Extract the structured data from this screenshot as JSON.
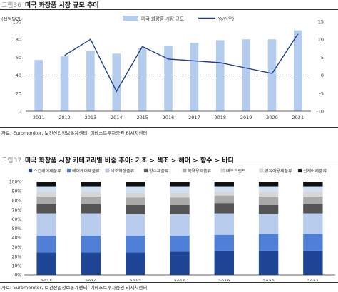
{
  "figures": [
    {
      "number": "그림36",
      "title": "미국 화장품 시장 규모 추이",
      "source": "자료: Euromonitor, 보건산업정보통계센터, 이베스트투자증권 리서치센터"
    },
    {
      "number": "그림37",
      "title": "미국 화장품 시장 카테고리별 비중 추이: 기초 > 색조 > 헤어 > 향수 > 바디",
      "source": "자료: Euromonitor, 보건산업정보통계센터, 이베스트투자증권 리서치센터"
    }
  ],
  "chart_data": [
    {
      "type": "bar",
      "unit_label": "(십억달러)",
      "categories": [
        "2011",
        "2012",
        "2013",
        "2014",
        "2015",
        "2016",
        "2017",
        "2018",
        "2019",
        "2020",
        "2021"
      ],
      "series": [
        {
          "name": "미국 화장품 시장 규모",
          "axis": "left",
          "kind": "bar",
          "color": "#b4cdee",
          "values": [
            57,
            61,
            67,
            64,
            70,
            73,
            76,
            79,
            80,
            80,
            90
          ]
        },
        {
          "name": "YoY(우)",
          "axis": "right",
          "kind": "line",
          "color": "#1f3f8f",
          "values": [
            null,
            5.5,
            10,
            -4.5,
            8,
            4.5,
            4,
            3.5,
            2,
            0.5,
            11.5
          ]
        }
      ],
      "ylim": [
        0,
        100
      ],
      "yticks": [
        "0",
        "20",
        "40",
        "60",
        "80",
        "100"
      ],
      "y2lim": [
        -10,
        15
      ],
      "y2ticks": [
        "-10",
        "-5",
        "0",
        "5",
        "10",
        "15"
      ],
      "legend_position": "top"
    },
    {
      "type": "bar",
      "stacked": true,
      "categories": [
        "2015",
        "2016",
        "2017",
        "2018",
        "2019",
        "2020",
        "2021"
      ],
      "series": [
        {
          "name": "스킨케어제품류",
          "color": "#1e4496",
          "values": [
            24,
            24,
            24,
            25,
            26,
            26,
            26
          ]
        },
        {
          "name": "헤어케어제품류",
          "color": "#4f7fd6",
          "values": [
            18,
            18,
            18,
            17,
            17,
            18,
            18
          ]
        },
        {
          "name": "색조화장품류",
          "color": "#b8cdee",
          "values": [
            24,
            24,
            23,
            23,
            23,
            21,
            22
          ]
        },
        {
          "name": "향수제품류",
          "color": "#555555",
          "values": [
            10,
            10,
            10,
            10,
            11,
            10,
            10
          ]
        },
        {
          "name": "목욕용제품류",
          "color": "#a9a9a9",
          "values": [
            8,
            8,
            8,
            8,
            8,
            9,
            8
          ]
        },
        {
          "name": "데오드런트",
          "color": "#d6d6d6",
          "values": [
            5,
            5,
            5,
            5,
            4,
            5,
            5
          ]
        },
        {
          "name": "영유아용제품류",
          "color": "#cfe0f3",
          "values": [
            6,
            6,
            7,
            7,
            6,
            6,
            6
          ]
        },
        {
          "name": "선케어제품류",
          "color": "#111111",
          "values": [
            5,
            5,
            5,
            5,
            5,
            5,
            5
          ]
        }
      ],
      "ylim": [
        0,
        100
      ],
      "yticks": [
        "0%",
        "10%",
        "20%",
        "30%",
        "40%",
        "50%",
        "60%",
        "70%",
        "80%",
        "90%",
        "100%"
      ],
      "legend_position": "top"
    }
  ]
}
